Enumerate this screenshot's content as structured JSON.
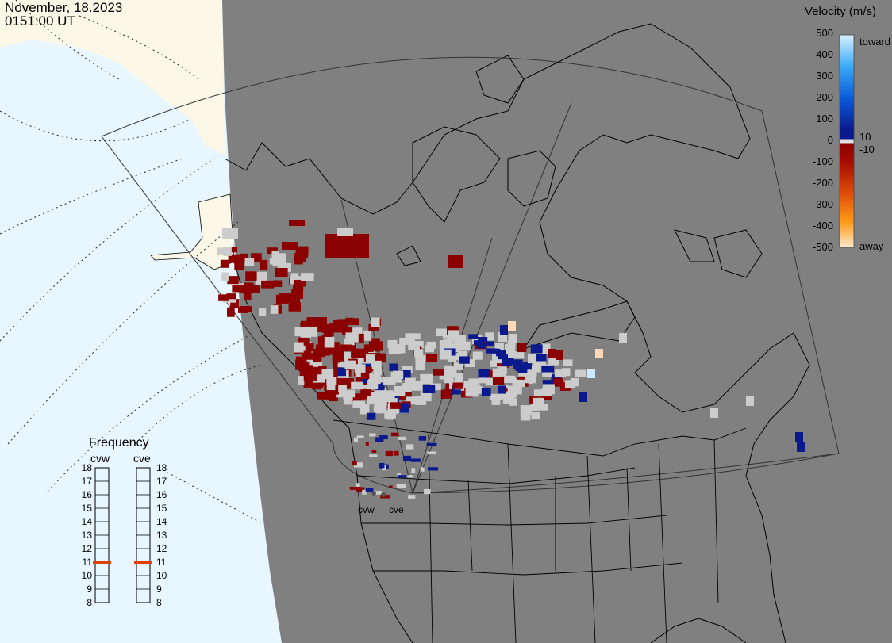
{
  "timestamp": {
    "date": "November, 18.2023",
    "time": "0151:00 UT"
  },
  "colorbar": {
    "title": "Velocity (m/s)",
    "ticks": [
      "500",
      "400",
      "300",
      "200",
      "100",
      "0",
      "-100",
      "-200",
      "-300",
      "-400",
      "-500"
    ],
    "inner_labels": [
      "10",
      "-10"
    ],
    "toward_label": "toward",
    "away_label": "away"
  },
  "frequency_panel": {
    "title": "Frequency",
    "radars": [
      {
        "name": "cvw",
        "value_mhz": 11
      },
      {
        "name": "cve",
        "value_mhz": 11
      }
    ],
    "scale": [
      "18",
      "17",
      "16",
      "15",
      "14",
      "13",
      "12",
      "11",
      "10",
      "9",
      "8"
    ]
  },
  "radar_sites": [
    {
      "name": "cvw"
    },
    {
      "name": "cve"
    }
  ],
  "colors": {
    "ocean": "#e8f6ff",
    "land_nonradar": "#fbf8e8",
    "night_shade": "#808080",
    "ground_scatter": "#cccccc",
    "velocity_strong_negative": "#8b0000",
    "velocity_strong_positive": "#0a1a8c",
    "frequency_marker": "#e0400a"
  }
}
